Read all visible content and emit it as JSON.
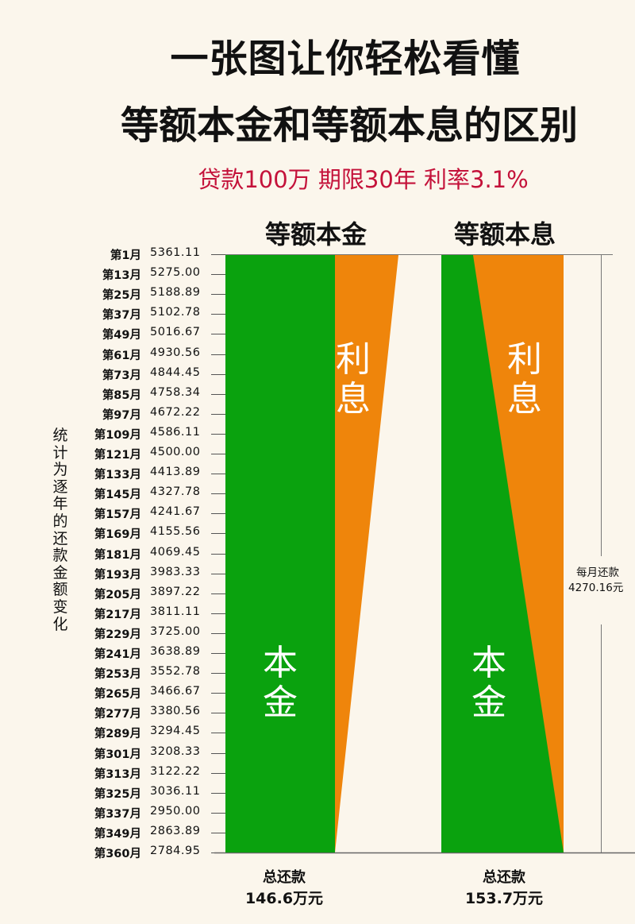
{
  "header": {
    "title_line1": "一张图让你轻松看懂",
    "title_line2": "等额本金和等额本息的区别",
    "subtitle": "贷款100万 期限30年 利率3.1%"
  },
  "columns": [
    {
      "label": "等额本金",
      "principal_label": [
        "本",
        "金"
      ],
      "interest_label": [
        "利",
        "息"
      ],
      "total_label": "总还款",
      "total_value": "146.6万元"
    },
    {
      "label": "等额本息",
      "principal_label": [
        "本",
        "金"
      ],
      "interest_label": [
        "利",
        "息"
      ],
      "total_label": "总还款",
      "total_value": "153.7万元",
      "monthly_label": "每月还款",
      "monthly_value": "4270.16元"
    }
  ],
  "side_label": "统计为逐年的还款金额变化",
  "colors": {
    "principal": "#0aa20e",
    "interest": "#ef850b",
    "background": "#fbf6ec",
    "subtitle": "#c4123a"
  },
  "chart_data": {
    "type": "area",
    "title": "一张图让你轻松看懂 等额本金和等额本息的区别",
    "subtitle": "贷款100万 期限30年 利率3.1%",
    "ylabel": "统计为逐年的还款金额变化",
    "categories": [
      "第1月",
      "第13月",
      "第25月",
      "第37月",
      "第49月",
      "第61月",
      "第73月",
      "第85月",
      "第97月",
      "第109月",
      "第121月",
      "第133月",
      "第145月",
      "第157月",
      "第169月",
      "第181月",
      "第193月",
      "第205月",
      "第217月",
      "第229月",
      "第241月",
      "第253月",
      "第265月",
      "第277月",
      "第289月",
      "第301月",
      "第313月",
      "第325月",
      "第337月",
      "第349月",
      "第360月"
    ],
    "series": [
      {
        "name": "等额本金 月供",
        "values": [
          5361.11,
          5275.0,
          5188.89,
          5102.78,
          5016.67,
          4930.56,
          4844.45,
          4758.34,
          4672.22,
          4586.11,
          4500.0,
          4413.89,
          4327.78,
          4241.67,
          4155.56,
          4069.45,
          3983.33,
          3897.22,
          3811.11,
          3725.0,
          3638.89,
          3552.78,
          3466.67,
          3380.56,
          3294.45,
          3208.33,
          3122.22,
          3036.11,
          2950.0,
          2863.89,
          2784.95
        ]
      },
      {
        "name": "等额本息 月供",
        "values": [
          4270.16,
          4270.16,
          4270.16,
          4270.16,
          4270.16,
          4270.16,
          4270.16,
          4270.16,
          4270.16,
          4270.16,
          4270.16,
          4270.16,
          4270.16,
          4270.16,
          4270.16,
          4270.16,
          4270.16,
          4270.16,
          4270.16,
          4270.16,
          4270.16,
          4270.16,
          4270.16,
          4270.16,
          4270.16,
          4270.16,
          4270.16,
          4270.16,
          4270.16,
          4270.16,
          4270.16
        ]
      }
    ],
    "components": [
      "本金",
      "利息"
    ],
    "totals": {
      "等额本金": "146.6万元",
      "等额本息": "153.7万元"
    },
    "annotation": "每月还款 4270.16元",
    "legend": "none",
    "grid": false
  }
}
